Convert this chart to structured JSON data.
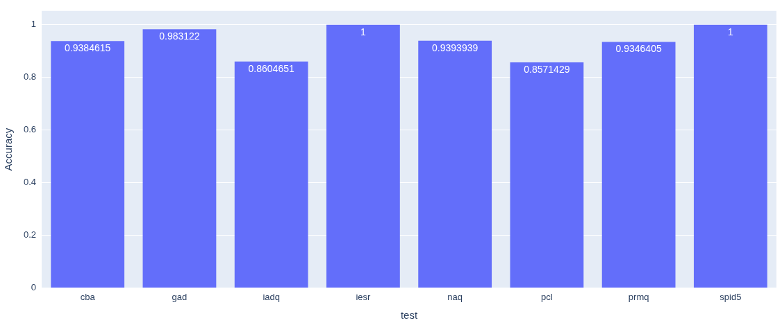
{
  "chart_data": {
    "type": "bar",
    "xlabel": "test",
    "ylabel": "Accuracy",
    "categories": [
      "cba",
      "gad",
      "iadq",
      "iesr",
      "naq",
      "pcl",
      "prmq",
      "spid5"
    ],
    "values": [
      0.9384615,
      0.983122,
      0.8604651,
      1,
      0.9393939,
      0.8571429,
      0.9346405,
      1
    ],
    "color": "#636efa",
    "ylim": [
      0,
      1.0526
    ],
    "yticks": [
      0,
      0.2,
      0.4,
      0.6,
      0.8,
      1
    ],
    "grid": "y",
    "legend": false,
    "data_labels": true
  }
}
